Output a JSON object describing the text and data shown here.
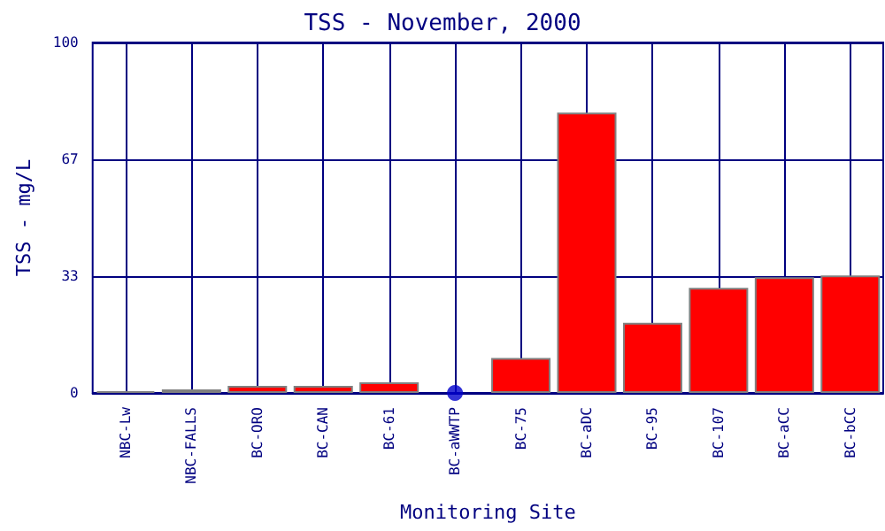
{
  "chart_data": {
    "type": "bar",
    "title": "TSS - November, 2000",
    "xlabel": "Monitoring Site",
    "ylabel": "TSS - mg/L",
    "categories": [
      "NBC-Lw",
      "NBC-FALLS",
      "BC-ORO",
      "BC-CAN",
      "BC-61",
      "BC-aWWTP",
      "BC-75",
      "BC-aDC",
      "BC-95",
      "BC-107",
      "BC-aCC",
      "BC-bCC"
    ],
    "series": [
      {
        "color": "#ff0000",
        "colors": [
          "#808080",
          "#ff0000",
          "#ff0000",
          "#ff0000",
          "#ff0000",
          "#ff0000",
          "#ff0000",
          "#ff0000",
          "#ff0000",
          "#ff0000",
          "#ff0000",
          "#ff0000"
        ],
        "values": [
          0.5,
          1,
          2,
          2,
          3,
          null,
          10,
          80,
          20,
          30,
          33,
          33.5
        ]
      },
      {
        "type": "scatter",
        "color": "#0000cc",
        "x": [
          "BC-aWWTP"
        ],
        "values": [
          0
        ]
      }
    ],
    "ylim": [
      0,
      100
    ],
    "yticks": [
      0,
      {
        "value": 33.33,
        "label": "33"
      },
      {
        "value": 66.67,
        "label": "67"
      },
      100
    ],
    "grid": true,
    "marker": "circle"
  }
}
